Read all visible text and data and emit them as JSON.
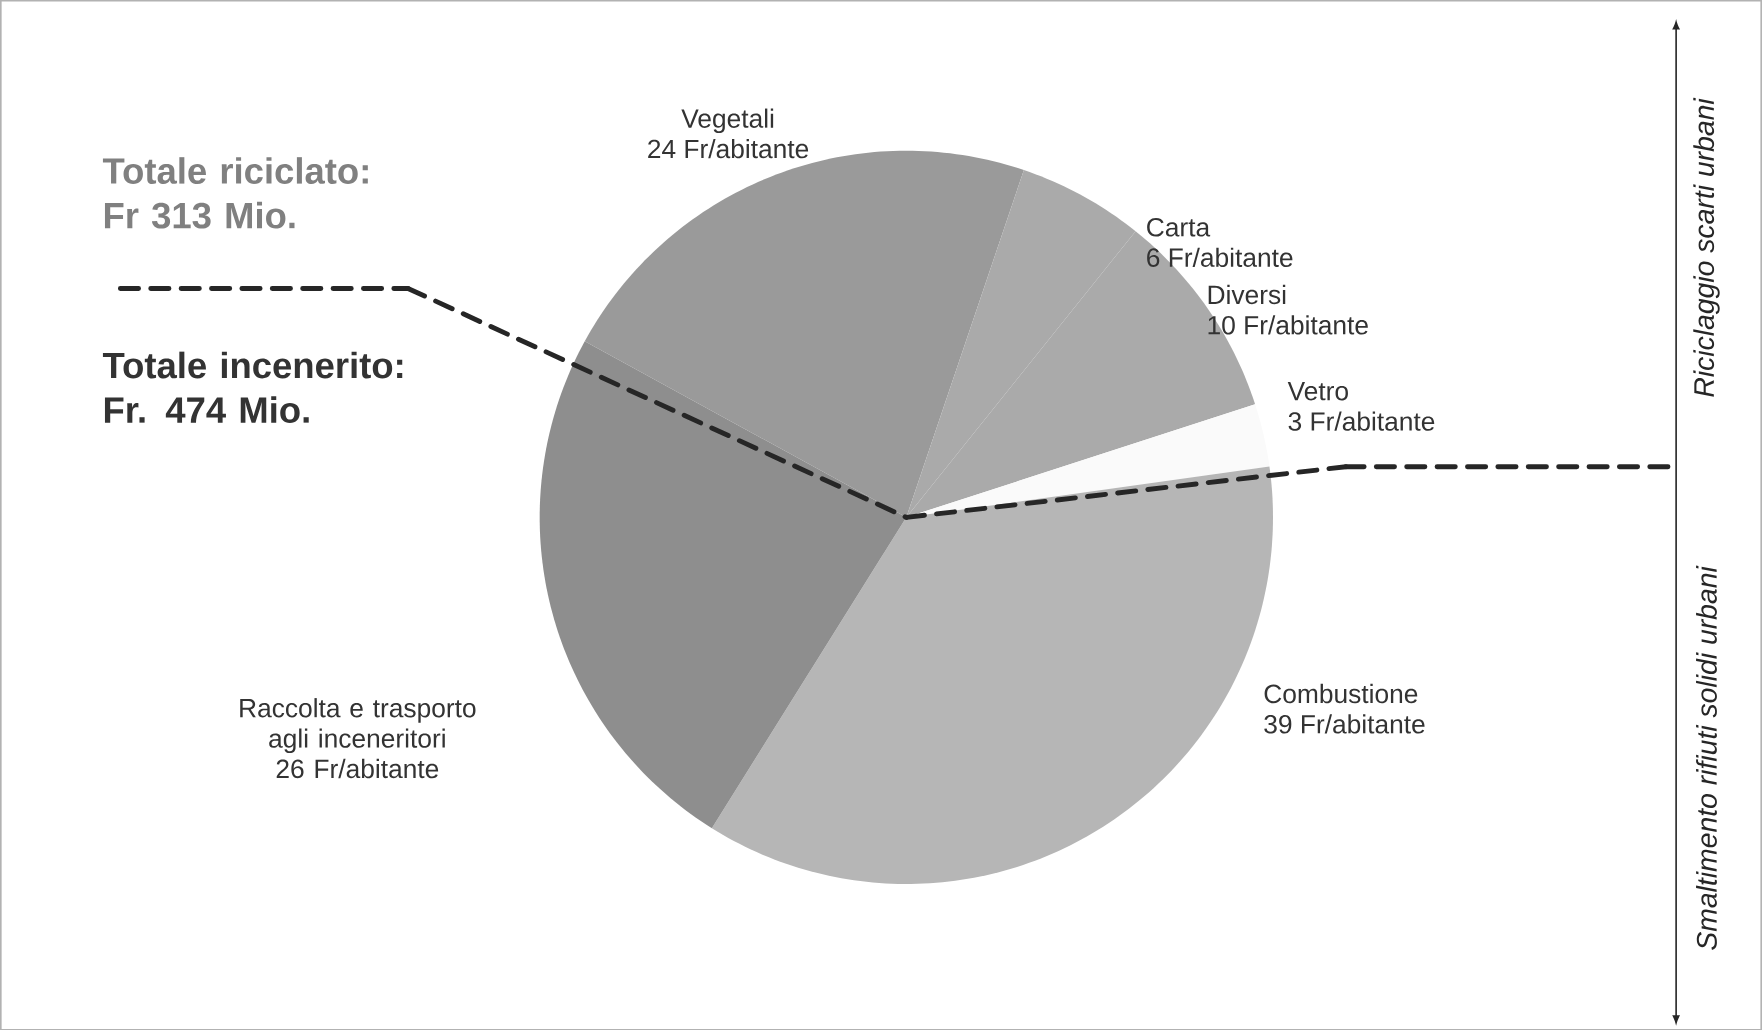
{
  "chart_data": {
    "type": "pie",
    "categories": [
      "Vegetali",
      "Carta",
      "Diversi",
      "Vetro",
      "Combustione",
      "Raccolta e trasporto agli inceneritori"
    ],
    "values": [
      24,
      6,
      10,
      3,
      39,
      26
    ],
    "value_labels": [
      "24 Fr/abitante",
      "6 Fr/abitante",
      "10 Fr/abitante",
      "3 Fr/abitante",
      "39 Fr/abitante",
      "26 Fr/abitante"
    ],
    "colors": [
      "#9a9a9a",
      "#aaaaaa",
      "#aaaaaa",
      "#fafafa",
      "#b6b6b6",
      "#8e8e8e"
    ],
    "annotations": [
      "Totale riciclato: Fr 313 Mio.",
      "Totale incenerito: Fr. 474 Mio.",
      "Riciclaggio scarti urbani",
      "Smaltimento rifiuti solidi urbani"
    ]
  }
}
